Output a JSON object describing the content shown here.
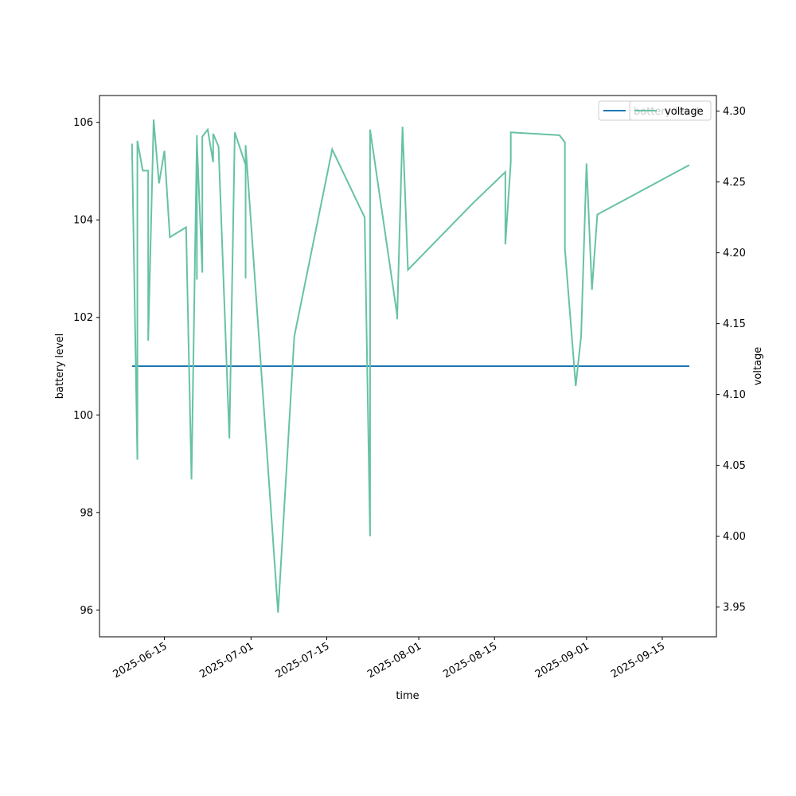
{
  "chart_data": {
    "type": "line",
    "xlabel": "time",
    "ylabel": "battery level",
    "y2label": "voltage",
    "x": [
      "2025-06-09",
      "2025-06-10",
      "2025-06-10",
      "2025-06-11",
      "2025-06-12",
      "2025-06-12",
      "2025-06-13",
      "2025-06-13",
      "2025-06-14",
      "2025-06-15",
      "2025-06-16",
      "2025-06-19",
      "2025-06-20",
      "2025-06-21",
      "2025-06-21",
      "2025-06-21",
      "2025-06-22",
      "2025-06-22",
      "2025-06-23",
      "2025-06-24",
      "2025-06-24",
      "2025-06-25",
      "2025-06-27",
      "2025-06-28",
      "2025-06-30",
      "2025-06-30",
      "2025-06-30",
      "2025-07-06",
      "2025-07-09",
      "2025-07-16",
      "2025-07-22",
      "2025-07-23",
      "2025-07-23",
      "2025-07-28",
      "2025-07-28",
      "2025-07-29",
      "2025-07-30",
      "2025-08-11",
      "2025-08-17",
      "2025-08-17",
      "2025-08-18",
      "2025-08-18",
      "2025-08-27",
      "2025-08-28",
      "2025-08-28",
      "2025-08-30",
      "2025-08-31",
      "2025-09-01",
      "2025-09-02",
      "2025-09-03",
      "2025-09-20"
    ],
    "series": [
      {
        "name": "battery level",
        "color": "#1f77b4",
        "values": [
          101,
          101,
          101,
          101,
          101,
          101,
          101,
          101,
          101,
          101,
          101,
          101,
          101,
          101,
          101,
          101,
          101,
          101,
          101,
          101,
          101,
          101,
          101,
          101,
          101,
          101,
          101,
          101,
          101,
          101,
          101,
          101,
          101,
          101,
          101,
          101,
          101,
          101,
          101,
          101,
          101,
          101,
          101,
          101,
          101,
          101,
          101,
          101,
          101,
          101,
          101
        ]
      },
      {
        "name": "voltage",
        "color": "#66c2a5",
        "axis": "y2",
        "values": [
          4.277,
          4.054,
          4.279,
          4.258,
          4.258,
          4.138,
          4.293,
          4.294,
          4.249,
          4.272,
          4.211,
          4.218,
          4.04,
          4.283,
          4.181,
          4.279,
          4.186,
          4.282,
          4.287,
          4.264,
          4.284,
          4.275,
          4.069,
          4.285,
          4.262,
          4.182,
          4.276,
          3.946,
          4.141,
          4.273,
          4.225,
          4.0,
          4.287,
          4.156,
          4.153,
          4.289,
          4.188,
          4.235,
          4.257,
          4.206,
          4.264,
          4.285,
          4.283,
          4.278,
          4.203,
          4.106,
          4.141,
          4.263,
          4.174,
          4.227,
          4.262
        ]
      }
    ],
    "xlim": [
      "2025-06-03",
      "2025-09-25"
    ],
    "xticks": [
      "2025-06-15",
      "2025-07-01",
      "2025-07-15",
      "2025-08-01",
      "2025-08-15",
      "2025-09-01",
      "2025-09-15"
    ],
    "ylim": [
      95.45,
      106.55
    ],
    "yticks": [
      96,
      98,
      100,
      102,
      104,
      106
    ],
    "y2lim": [
      3.929,
      4.311
    ],
    "y2ticks": [
      3.95,
      {
        "value": 4,
        "label": "4.00"
      },
      4.05,
      {
        "value": 4.1,
        "label": "4.10"
      },
      4.15,
      {
        "value": 4.2,
        "label": "4.20"
      },
      4.25,
      {
        "value": 4.3,
        "label": "4.30"
      }
    ],
    "legend": "upper right"
  }
}
